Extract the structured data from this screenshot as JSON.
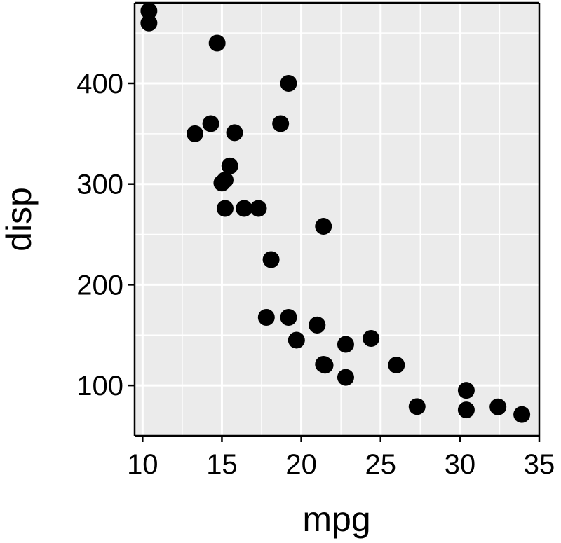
{
  "chart_data": {
    "type": "scatter",
    "title": "",
    "xlabel": "mpg",
    "ylabel": "disp",
    "xlim": [
      9.5,
      35.0
    ],
    "ylim": [
      50,
      480
    ],
    "x_ticks": [
      10,
      15,
      20,
      25,
      30,
      35
    ],
    "y_ticks": [
      100,
      200,
      300,
      400
    ],
    "x_tick_labels": [
      "10",
      "15",
      "20",
      "25",
      "30",
      "35"
    ],
    "y_tick_labels": [
      "100",
      "200",
      "300",
      "400"
    ],
    "grid": true,
    "legend": "none",
    "colors": {
      "panel": "#ebebeb",
      "grid": "#ffffff",
      "point": "#000000",
      "border": "#000000"
    },
    "points": [
      {
        "x": 21.0,
        "y": 160
      },
      {
        "x": 21.0,
        "y": 160
      },
      {
        "x": 22.8,
        "y": 108
      },
      {
        "x": 21.4,
        "y": 258
      },
      {
        "x": 18.7,
        "y": 360
      },
      {
        "x": 18.1,
        "y": 225
      },
      {
        "x": 14.3,
        "y": 360
      },
      {
        "x": 24.4,
        "y": 146.7
      },
      {
        "x": 22.8,
        "y": 140.8
      },
      {
        "x": 19.2,
        "y": 167.6
      },
      {
        "x": 17.8,
        "y": 167.6
      },
      {
        "x": 16.4,
        "y": 275.8
      },
      {
        "x": 17.3,
        "y": 275.8
      },
      {
        "x": 15.2,
        "y": 275.8
      },
      {
        "x": 10.4,
        "y": 472
      },
      {
        "x": 10.4,
        "y": 460
      },
      {
        "x": 14.7,
        "y": 440
      },
      {
        "x": 32.4,
        "y": 78.7
      },
      {
        "x": 30.4,
        "y": 75.7
      },
      {
        "x": 33.9,
        "y": 71.1
      },
      {
        "x": 21.5,
        "y": 120.1
      },
      {
        "x": 15.5,
        "y": 318
      },
      {
        "x": 15.2,
        "y": 304
      },
      {
        "x": 13.3,
        "y": 350
      },
      {
        "x": 19.2,
        "y": 400
      },
      {
        "x": 27.3,
        "y": 79
      },
      {
        "x": 26.0,
        "y": 120.3
      },
      {
        "x": 30.4,
        "y": 95.1
      },
      {
        "x": 15.8,
        "y": 351
      },
      {
        "x": 19.7,
        "y": 145
      },
      {
        "x": 15.0,
        "y": 301
      },
      {
        "x": 21.4,
        "y": 121
      }
    ]
  }
}
